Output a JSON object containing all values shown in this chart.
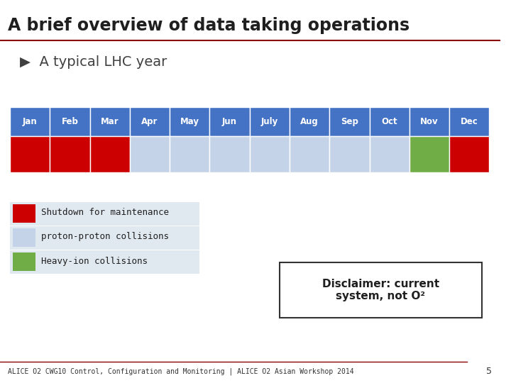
{
  "title": "A brief overview of data taking operations",
  "subtitle": "▶  A typical LHC year",
  "months": [
    "Jan",
    "Feb",
    "Mar",
    "Apr",
    "May",
    "Jun",
    "July",
    "Aug",
    "Sep",
    "Oct",
    "Nov",
    "Dec"
  ],
  "header_color": "#4472C4",
  "header_text_color": "#FFFFFF",
  "row_colors": [
    "#CC0000",
    "#CC0000",
    "#CC0000",
    "#C5D3E8",
    "#C5D3E8",
    "#C5D3E8",
    "#C5D3E8",
    "#C5D3E8",
    "#C5D3E8",
    "#C5D3E8",
    "#70AD47",
    "#CC0000"
  ],
  "legend": [
    {
      "color": "#CC0000",
      "label": "Shutdown for maintenance"
    },
    {
      "color": "#C5D3E8",
      "label": "proton-proton collisions"
    },
    {
      "color": "#70AD47",
      "label": "Heavy-ion collisions"
    }
  ],
  "disclaimer": "Disclaimer: current\nsystem, not O²",
  "footer": "ALICE O2 CWG10 Control, Configuration and Monitoring | ALICE O2 Asian Workshop 2014",
  "page_num": "5",
  "bg_color": "#FFFFFF",
  "title_color": "#1F1F1F",
  "subtitle_color": "#404040",
  "footer_color": "#333333",
  "divider_color": "#8B0000"
}
